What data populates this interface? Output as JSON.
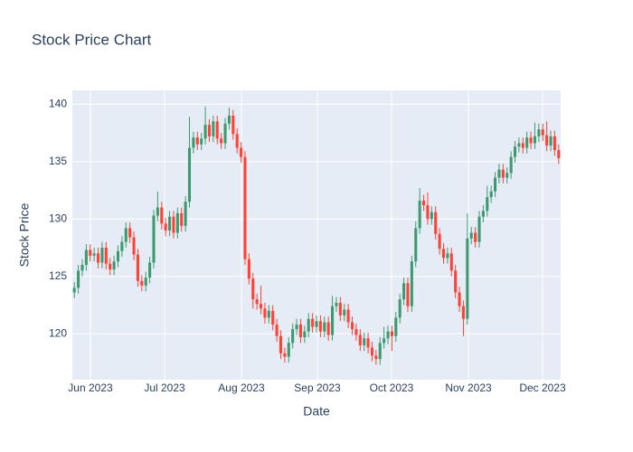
{
  "chart_data": {
    "type": "candlestick",
    "title": "Stock Price Chart",
    "x_label": "Date",
    "y_label": "Stock Price",
    "xticks": [
      "Jun 2023",
      "Jul 2023",
      "Aug 2023",
      "Sep 2023",
      "Oct 2023",
      "Nov 2023",
      "Dec 2023"
    ],
    "ylim": [
      116,
      141.2
    ],
    "yticks": [
      120,
      125,
      130,
      135,
      140
    ],
    "grid": true,
    "increasing_color": "#3D9970",
    "decreasing_color": "#FF4136",
    "open": [
      123.6,
      124.0,
      125.5,
      126.0,
      127.3,
      126.8,
      127.0,
      126.2,
      127.5,
      126.1,
      125.6,
      126.3,
      127.2,
      128.0,
      129.2,
      128.4,
      126.9,
      124.6,
      124.2,
      124.9,
      126.2,
      130.3,
      131.0,
      129.6,
      129.0,
      130.2,
      128.8,
      130.5,
      129.4,
      131.5,
      136.2,
      137.1,
      136.5,
      137.0,
      138.2,
      137.2,
      138.5,
      137.0,
      136.6,
      138.3,
      139.0,
      137.4,
      136.2,
      135.4,
      126.5,
      124.8,
      123.0,
      122.6,
      122.2,
      121.4,
      122.0,
      120.8,
      119.8,
      118.3,
      118.0,
      119.2,
      120.4,
      120.8,
      119.7,
      120.2,
      121.3,
      120.6,
      121.1,
      120.2,
      121.0,
      119.9,
      122.4,
      122.7,
      121.6,
      122.1,
      121.0,
      120.4,
      119.9,
      119.0,
      119.6,
      118.8,
      118.1,
      117.8,
      119.2,
      119.6,
      120.2,
      119.8,
      121.4,
      123.0,
      124.4,
      122.4,
      126.3,
      129.2,
      131.6,
      131.2,
      130.0,
      130.6,
      128.7,
      127.4,
      126.6,
      127.0,
      125.5,
      123.6,
      122.4,
      121.3,
      128.3,
      128.8,
      128.0,
      130.2,
      130.7,
      131.9,
      132.4,
      133.6,
      134.3,
      133.6,
      134.0,
      135.4,
      136.3,
      136.6,
      136.2,
      137.1,
      136.6,
      137.2,
      137.8,
      137.3,
      136.4,
      137.2,
      136.0
    ],
    "high": [
      124.5,
      126.0,
      126.5,
      127.8,
      127.8,
      127.5,
      127.5,
      128.0,
      128.0,
      126.6,
      126.8,
      127.7,
      128.5,
      129.7,
      129.7,
      128.9,
      127.4,
      125.1,
      125.4,
      126.7,
      130.8,
      132.4,
      131.5,
      130.1,
      130.7,
      130.7,
      131.0,
      131.0,
      132.0,
      138.9,
      137.6,
      137.6,
      137.5,
      139.8,
      138.7,
      139.0,
      139.0,
      137.5,
      138.8,
      139.7,
      139.5,
      137.9,
      136.7,
      135.9,
      127.0,
      125.3,
      123.5,
      124.2,
      122.7,
      122.5,
      122.5,
      121.3,
      120.3,
      118.8,
      119.7,
      120.9,
      121.3,
      121.3,
      120.7,
      121.8,
      121.8,
      121.6,
      121.6,
      121.5,
      121.5,
      123.3,
      123.2,
      123.2,
      122.6,
      122.6,
      121.5,
      120.9,
      120.4,
      120.1,
      120.1,
      119.3,
      118.6,
      119.7,
      120.6,
      120.7,
      120.7,
      121.9,
      123.5,
      124.9,
      124.9,
      126.8,
      129.8,
      132.7,
      132.1,
      132.3,
      131.1,
      131.1,
      129.2,
      127.9,
      127.5,
      127.5,
      126.0,
      124.1,
      122.9,
      130.5,
      129.3,
      129.3,
      130.7,
      131.2,
      132.9,
      132.9,
      134.1,
      134.8,
      134.8,
      134.5,
      135.9,
      136.8,
      137.1,
      137.1,
      137.6,
      137.6,
      138.4,
      138.3,
      138.3,
      138.5,
      137.7,
      137.7,
      136.5
    ],
    "low": [
      123.1,
      123.5,
      125.0,
      125.5,
      126.3,
      126.3,
      125.7,
      125.7,
      125.6,
      125.1,
      125.1,
      125.8,
      126.7,
      127.5,
      127.9,
      126.4,
      124.1,
      123.7,
      123.7,
      124.4,
      125.7,
      129.8,
      129.1,
      128.5,
      128.5,
      128.3,
      128.3,
      128.9,
      128.9,
      131.0,
      135.7,
      136.0,
      136.0,
      136.5,
      136.7,
      136.7,
      136.5,
      136.1,
      136.1,
      137.8,
      136.9,
      135.7,
      134.9,
      126.0,
      124.3,
      122.2,
      122.1,
      121.7,
      120.9,
      120.9,
      120.3,
      119.3,
      117.8,
      117.5,
      117.5,
      118.7,
      119.9,
      119.2,
      119.2,
      119.7,
      120.1,
      120.1,
      119.7,
      119.7,
      119.4,
      119.4,
      121.9,
      121.1,
      121.1,
      120.5,
      119.9,
      119.4,
      118.5,
      118.5,
      118.3,
      117.6,
      117.3,
      117.3,
      118.7,
      119.1,
      118.5,
      119.3,
      120.9,
      122.5,
      121.9,
      121.9,
      125.8,
      128.7,
      130.7,
      129.5,
      129.5,
      128.2,
      126.9,
      126.1,
      126.1,
      125.0,
      123.1,
      121.9,
      119.8,
      120.8,
      127.8,
      127.5,
      127.5,
      129.7,
      130.2,
      131.4,
      131.9,
      133.1,
      133.1,
      133.1,
      133.5,
      134.9,
      135.8,
      135.7,
      135.7,
      136.1,
      136.1,
      136.7,
      136.8,
      135.9,
      135.9,
      135.5,
      134.8
    ],
    "close": [
      124.0,
      125.5,
      126.0,
      127.3,
      126.8,
      127.0,
      126.2,
      127.5,
      126.1,
      125.6,
      126.3,
      127.2,
      128.0,
      129.2,
      128.4,
      126.9,
      124.6,
      124.2,
      124.9,
      126.2,
      130.3,
      131.0,
      129.6,
      129.0,
      130.2,
      128.8,
      130.5,
      129.4,
      131.5,
      136.2,
      137.1,
      136.5,
      137.0,
      138.2,
      137.2,
      138.5,
      137.0,
      136.6,
      138.3,
      139.0,
      137.4,
      136.2,
      135.4,
      126.5,
      124.8,
      123.0,
      122.6,
      122.2,
      121.4,
      122.0,
      120.8,
      119.8,
      118.3,
      118.0,
      119.2,
      120.4,
      120.8,
      119.7,
      120.2,
      121.3,
      120.6,
      121.1,
      120.2,
      121.0,
      119.9,
      122.4,
      122.7,
      121.6,
      122.1,
      121.0,
      120.4,
      119.9,
      119.0,
      119.6,
      118.8,
      118.1,
      117.8,
      119.2,
      119.6,
      120.2,
      119.8,
      121.4,
      123.0,
      124.4,
      122.4,
      126.3,
      129.2,
      131.6,
      131.2,
      130.0,
      130.6,
      128.7,
      127.4,
      126.6,
      127.0,
      125.5,
      123.6,
      122.4,
      121.3,
      128.3,
      128.8,
      128.0,
      130.2,
      130.7,
      131.9,
      132.4,
      133.6,
      134.3,
      133.6,
      134.0,
      135.4,
      136.3,
      136.6,
      136.2,
      137.1,
      136.6,
      137.2,
      137.8,
      137.3,
      136.4,
      137.2,
      136.0,
      135.3
    ]
  }
}
